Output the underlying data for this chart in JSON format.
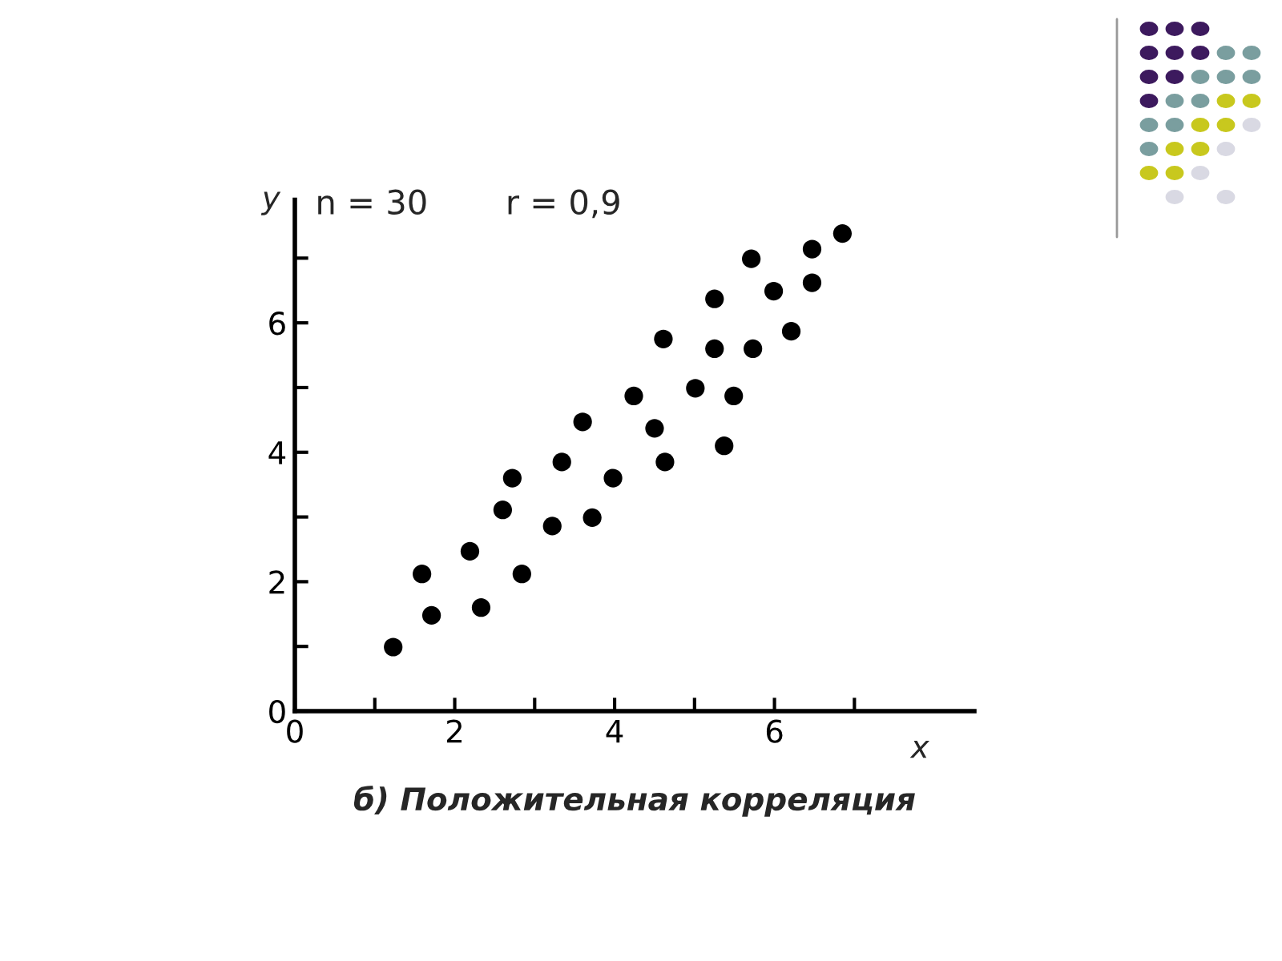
{
  "chart_data": {
    "type": "scatter",
    "title": "б) Положительная корреляция",
    "xlabel": "x",
    "ylabel": "y",
    "annotations": [
      "n = 30",
      "r = 0,9"
    ],
    "xlim": [
      0,
      8.5
    ],
    "ylim": [
      0,
      7.9
    ],
    "xticks": [
      0,
      {
        "value": 1,
        "label": null
      },
      2,
      {
        "value": 3,
        "label": null
      },
      4,
      {
        "value": 5,
        "label": null
      },
      6,
      {
        "value": 7,
        "label": null
      }
    ],
    "yticks": [
      0,
      {
        "value": 1,
        "label": null
      },
      2,
      {
        "value": 3,
        "label": null
      },
      4,
      {
        "value": 5,
        "label": null
      },
      6,
      {
        "value": 7,
        "label": null
      }
    ],
    "grid": false,
    "legend": false,
    "marker": "circle",
    "series": [
      {
        "color": "#000000",
        "x": [
          1.23,
          1.59,
          1.71,
          2.19,
          2.33,
          2.6,
          2.72,
          2.84,
          3.22,
          3.34,
          3.6,
          3.72,
          3.98,
          4.24,
          4.5,
          4.61,
          4.63,
          5.01,
          5.25,
          5.25,
          5.37,
          5.49,
          5.71,
          5.73,
          5.99,
          6.21,
          6.47,
          6.47,
          6.85
        ],
        "values": [
          0.99,
          2.12,
          1.48,
          2.47,
          1.6,
          3.11,
          3.6,
          2.12,
          2.86,
          3.85,
          4.47,
          2.99,
          3.6,
          4.87,
          4.37,
          5.75,
          3.85,
          4.99,
          6.37,
          5.6,
          4.1,
          4.87,
          6.99,
          5.6,
          6.49,
          5.87,
          7.14,
          6.62,
          7.38
        ]
      }
    ]
  }
}
